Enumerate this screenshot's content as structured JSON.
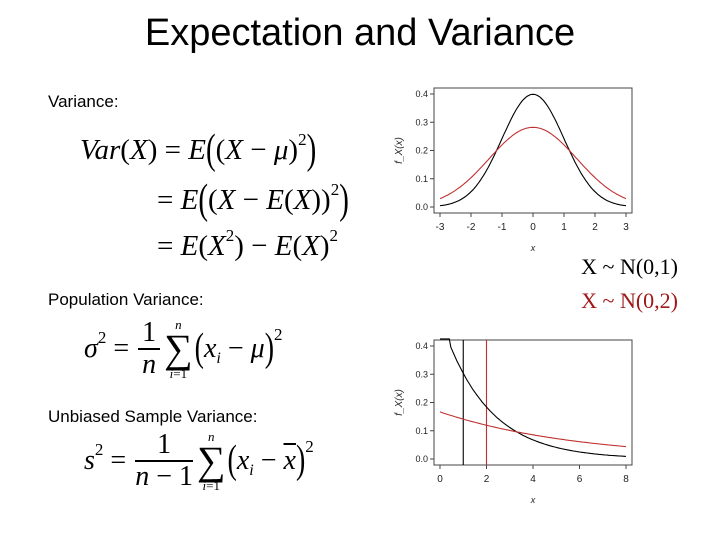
{
  "title": "Expectation and Variance",
  "labels": {
    "variance": "Variance:",
    "population_variance": "Population Variance:",
    "unbiased_sample_variance": "Unbiased Sample Variance:"
  },
  "legend": {
    "n01": "X ~ N(0,1)",
    "n02": "X ~ N(0,2)",
    "n01_color": "#000000",
    "n02_color": "#a01818"
  },
  "chart_data": [
    {
      "type": "line",
      "xlabel": "x",
      "ylabel": "f_X(x)",
      "xlim": [
        -3,
        3
      ],
      "ylim": [
        0,
        0.4
      ],
      "x_ticks": [
        "-3",
        "-2",
        "-1",
        "0",
        "1",
        "2",
        "3"
      ],
      "y_ticks": [
        "0.0",
        "0.1",
        "0.2",
        "0.3",
        "0.4"
      ],
      "series": [
        {
          "color": "#000000",
          "function": "normal pdf, mean 0, variance 1"
        },
        {
          "color": "#c03030",
          "function": "normal pdf, mean 0, variance 2"
        }
      ],
      "grid": false
    },
    {
      "type": "line",
      "xlabel": "x",
      "ylabel": "f_X(x)",
      "xlim": [
        0,
        8
      ],
      "ylim": [
        0,
        0.4
      ],
      "x_ticks": [
        "0",
        "2",
        "4",
        "6",
        "8"
      ],
      "y_ticks": [
        "0.0",
        "0.1",
        "0.2",
        "0.3",
        "0.4"
      ],
      "series": [
        {
          "color": "#000000",
          "function": "exponential pdf, rate 0.5"
        },
        {
          "color": "#c03030",
          "function": "exponential pdf, rate 1/6"
        }
      ],
      "vlines": [
        {
          "x": 1,
          "color": "#000000"
        },
        {
          "x": 2,
          "color": "#c03030"
        }
      ],
      "grid": false
    }
  ]
}
